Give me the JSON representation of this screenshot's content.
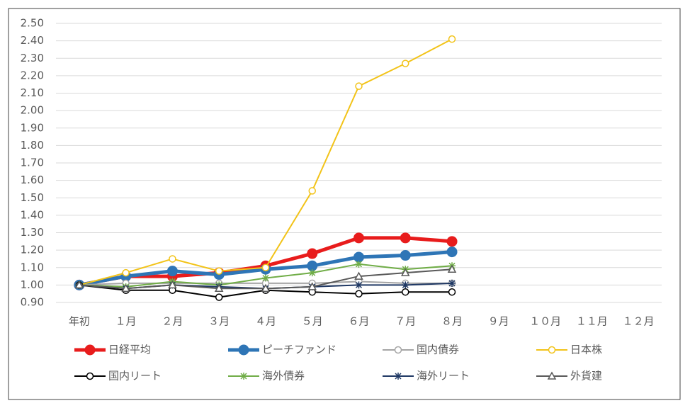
{
  "chart_data": {
    "type": "line",
    "categories": [
      "年初",
      "１月",
      "２月",
      "３月",
      "４月",
      "５月",
      "６月",
      "７月",
      "８月",
      "９月",
      "１０月",
      "１１月",
      "１２月"
    ],
    "ylim": [
      0.9,
      2.5
    ],
    "yticks": [
      {
        "value": 0.9,
        "label": "0.90"
      },
      {
        "value": 1.0,
        "label": "1.00"
      },
      {
        "value": 1.1,
        "label": "1.10"
      },
      {
        "value": 1.2,
        "label": "1.20"
      },
      {
        "value": 1.3,
        "label": "1.30"
      },
      {
        "value": 1.4,
        "label": "1.40"
      },
      {
        "value": 1.5,
        "label": "1.50"
      },
      {
        "value": 1.6,
        "label": "1.60"
      },
      {
        "value": 1.7,
        "label": "1.70"
      },
      {
        "value": 1.8,
        "label": "1.80"
      },
      {
        "value": 1.9,
        "label": "1.90"
      },
      {
        "value": 2.0,
        "label": "2.00"
      },
      {
        "value": 2.1,
        "label": "2.10"
      },
      {
        "value": 2.2,
        "label": "2.20"
      },
      {
        "value": 2.3,
        "label": "2.30"
      },
      {
        "value": 2.4,
        "label": "2.40"
      },
      {
        "value": 2.5,
        "label": "2.50"
      }
    ],
    "grid": true,
    "legend": "bottom",
    "series": [
      {
        "name": "日経平均",
        "color": "#e81c1c",
        "line_width": 5,
        "marker": "circle",
        "filled": true,
        "values": [
          1.0,
          1.05,
          1.05,
          1.07,
          1.11,
          1.18,
          1.27,
          1.27,
          1.25,
          null,
          null,
          null,
          null
        ]
      },
      {
        "name": "ピーチファンド",
        "color": "#2e75b6",
        "line_width": 5,
        "marker": "circle",
        "filled": true,
        "values": [
          1.0,
          1.05,
          1.08,
          1.06,
          1.09,
          1.11,
          1.16,
          1.17,
          1.19,
          null,
          null,
          null,
          null
        ]
      },
      {
        "name": "国内債券",
        "color": "#a5a5a5",
        "line_width": 2,
        "marker": "circle",
        "filled": false,
        "values": [
          1.0,
          1.01,
          1.01,
          1.01,
          1.01,
          1.01,
          1.02,
          1.01,
          1.01,
          null,
          null,
          null,
          null
        ]
      },
      {
        "name": "日本株",
        "color": "#f2c318",
        "line_width": 2,
        "marker": "circle",
        "filled": false,
        "values": [
          1.0,
          1.07,
          1.15,
          1.08,
          1.1,
          1.54,
          2.14,
          2.27,
          2.41,
          null,
          null,
          null,
          null
        ]
      },
      {
        "name": "国内リート",
        "color": "#000000",
        "line_width": 2,
        "marker": "circle",
        "filled": false,
        "values": [
          1.0,
          0.97,
          0.97,
          0.93,
          0.97,
          0.96,
          0.95,
          0.96,
          0.96,
          null,
          null,
          null,
          null
        ]
      },
      {
        "name": "海外債券",
        "color": "#70ad47",
        "line_width": 2,
        "marker": "star",
        "filled": false,
        "values": [
          1.0,
          0.99,
          1.02,
          1.0,
          1.04,
          1.07,
          1.12,
          1.09,
          1.11,
          null,
          null,
          null,
          null
        ]
      },
      {
        "name": "海外リート",
        "color": "#1f3864",
        "line_width": 2,
        "marker": "star",
        "filled": false,
        "values": [
          1.0,
          0.98,
          1.0,
          0.99,
          0.98,
          0.99,
          1.0,
          1.0,
          1.01,
          null,
          null,
          null,
          null
        ]
      },
      {
        "name": "外貨建",
        "color": "#595959",
        "line_width": 2,
        "marker": "triangle",
        "filled": false,
        "values": [
          1.0,
          0.98,
          1.0,
          0.98,
          0.98,
          0.99,
          1.05,
          1.07,
          1.09,
          null,
          null,
          null,
          null
        ]
      }
    ]
  }
}
